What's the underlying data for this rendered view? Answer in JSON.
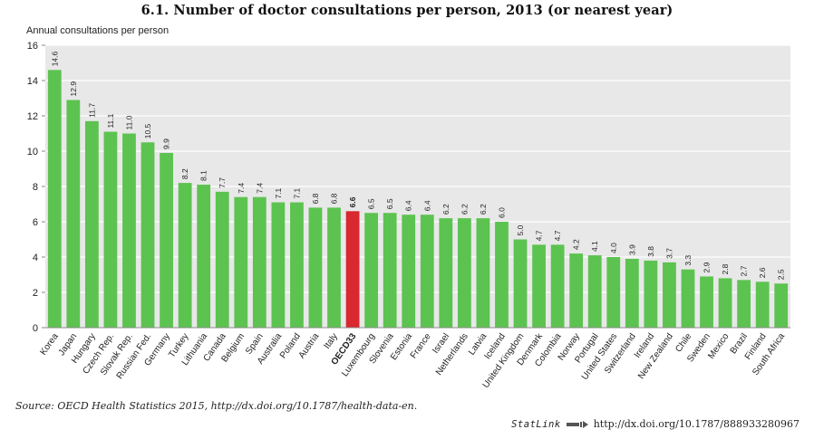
{
  "title": "6.1.  Number of doctor consultations per person, 2013 (or nearest year)",
  "source": "Source:  OECD Health Statistics 2015, http://dx.doi.org/10.1787/health-data-en.",
  "statlink": {
    "brand": "StatLink",
    "url": "http://dx.doi.org/10.1787/888933280967"
  },
  "colors": {
    "bar": "#5cc350",
    "highlight": "#d9282f",
    "plot_bg": "#e8e8e8",
    "grid": "#ffffff"
  },
  "chart_data": {
    "type": "bar",
    "ylabel": "Annual consultations per person",
    "xlabel": "",
    "ylim": [
      0,
      16
    ],
    "yticks": [
      0,
      2,
      4,
      6,
      8,
      10,
      12,
      14,
      16
    ],
    "grid": true,
    "highlight_category": "OECD33",
    "categories": [
      "Korea",
      "Japan",
      "Hungary",
      "Czech Rep.",
      "Slovak Rep.",
      "Russian Fed.",
      "Germany",
      "Turkey",
      "Lithuania",
      "Canada",
      "Belgium",
      "Spain",
      "Australia",
      "Poland",
      "Austria",
      "Italy",
      "OECD33",
      "Luxembourg",
      "Slovenia",
      "Estonia",
      "France",
      "Israel",
      "Netherlands",
      "Latvia",
      "Iceland",
      "United Kingdom",
      "Denmark",
      "Colombia",
      "Norway",
      "Portugal",
      "United States",
      "Switzerland",
      "Ireland",
      "New Zealand",
      "Chile",
      "Sweden",
      "Mexico",
      "Brazil",
      "Finland",
      "South Africa"
    ],
    "values": [
      14.6,
      12.9,
      11.7,
      11.1,
      11.0,
      10.5,
      9.9,
      8.2,
      8.1,
      7.7,
      7.4,
      7.4,
      7.1,
      7.1,
      6.8,
      6.8,
      6.6,
      6.5,
      6.5,
      6.4,
      6.4,
      6.2,
      6.2,
      6.2,
      6.0,
      5.0,
      4.7,
      4.7,
      4.2,
      4.1,
      4.0,
      3.9,
      3.8,
      3.7,
      3.3,
      2.9,
      2.8,
      2.7,
      2.6,
      2.5
    ]
  }
}
